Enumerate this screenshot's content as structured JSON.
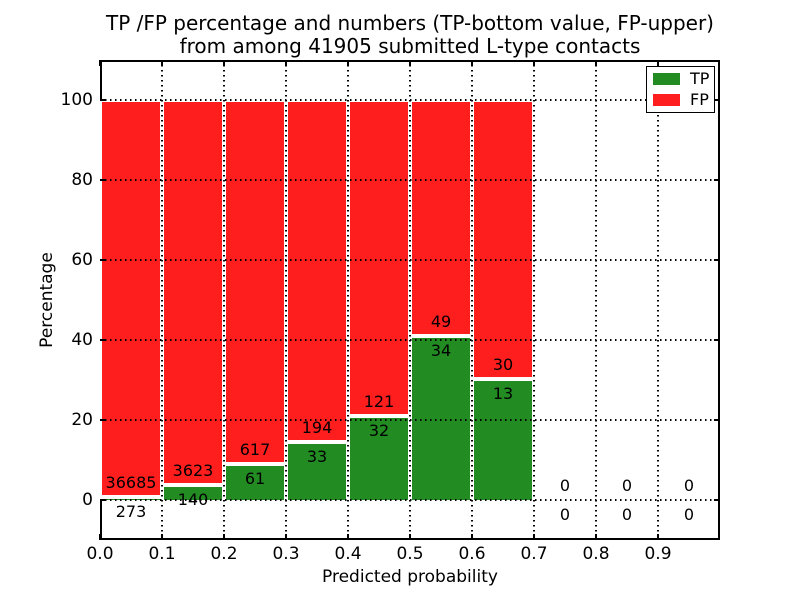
{
  "title": {
    "line1": "TP /FP percentage and numbers (TP-bottom value, FP-upper)",
    "line2": "from among 41905 submitted L-type contacts"
  },
  "chart_data": {
    "type": "bar",
    "subtype": "stacked-percentage",
    "title": "TP /FP percentage and numbers (TP-bottom value, FP-upper) from among 41905 submitted L-type contacts",
    "total_contacts": 41905,
    "xlabel": "Predicted probability",
    "ylabel": "Percentage",
    "xlim": [
      0.0,
      1.0
    ],
    "ylim": [
      -10,
      110
    ],
    "x_tick_values": [
      0.0,
      0.1,
      0.2,
      0.3,
      0.4,
      0.5,
      0.6,
      0.7,
      0.8,
      0.9
    ],
    "x_tick_labels": [
      "0.0",
      "0.1",
      "0.2",
      "0.3",
      "0.4",
      "0.5",
      "0.6",
      "0.7",
      "0.8",
      "0.9"
    ],
    "y_tick_values": [
      0,
      20,
      40,
      60,
      80,
      100
    ],
    "y_tick_labels": [
      "0",
      "20",
      "40",
      "60",
      "80",
      "100"
    ],
    "grid": {
      "show": true,
      "style": "dotted",
      "color": "#000000"
    },
    "bin_width": 0.1,
    "bins": [
      {
        "x_start": 0.0,
        "x_end": 0.1,
        "tp": 273,
        "fp": 36685,
        "tp_percent": 0.74
      },
      {
        "x_start": 0.1,
        "x_end": 0.2,
        "tp": 140,
        "fp": 3623,
        "tp_percent": 3.72
      },
      {
        "x_start": 0.2,
        "x_end": 0.3,
        "tp": 61,
        "fp": 617,
        "tp_percent": 9.0
      },
      {
        "x_start": 0.3,
        "x_end": 0.4,
        "tp": 33,
        "fp": 194,
        "tp_percent": 14.54
      },
      {
        "x_start": 0.4,
        "x_end": 0.5,
        "tp": 32,
        "fp": 121,
        "tp_percent": 20.92
      },
      {
        "x_start": 0.5,
        "x_end": 0.6,
        "tp": 34,
        "fp": 49,
        "tp_percent": 40.96
      },
      {
        "x_start": 0.6,
        "x_end": 0.7,
        "tp": 13,
        "fp": 30,
        "tp_percent": 30.23
      },
      {
        "x_start": 0.7,
        "x_end": 0.8,
        "tp": 0,
        "fp": 0,
        "tp_percent": 0
      },
      {
        "x_start": 0.8,
        "x_end": 0.9,
        "tp": 0,
        "fp": 0,
        "tp_percent": 0
      },
      {
        "x_start": 0.9,
        "x_end": 1.0,
        "tp": 0,
        "fp": 0,
        "tp_percent": 0
      }
    ],
    "series": [
      {
        "name": "TP",
        "color": "#228b22"
      },
      {
        "name": "FP",
        "color": "#ff1e1e"
      }
    ],
    "legend": {
      "position": "upper right",
      "entries": [
        {
          "label": "TP",
          "color": "#228b22"
        },
        {
          "label": "FP",
          "color": "#ff1e1e"
        }
      ]
    },
    "colors": {
      "bar_edge": "#ffffff",
      "axis": "#000000",
      "background": "#ffffff"
    }
  }
}
